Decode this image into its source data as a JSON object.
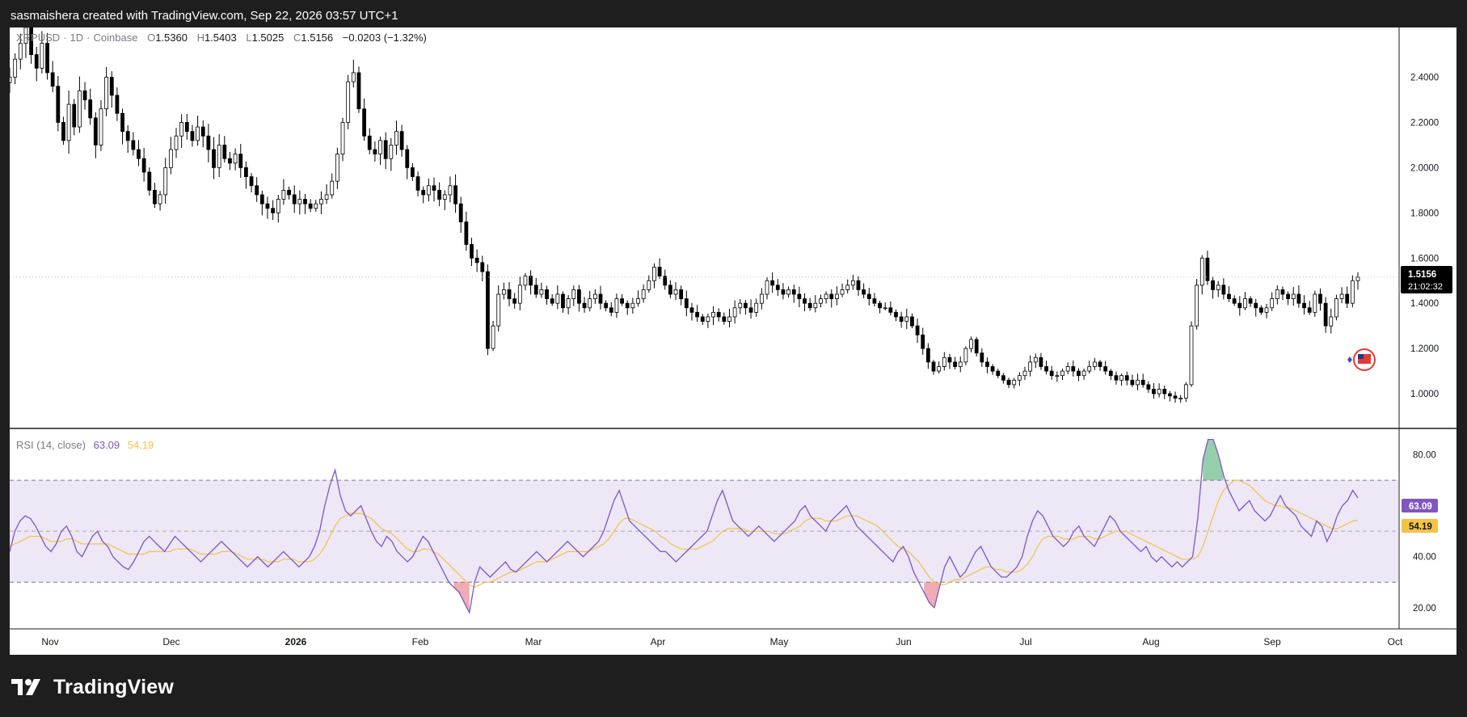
{
  "header": {
    "attribution": "sasmaishera created with TradingView.com, Sep 22, 2026 03:57 UTC+1"
  },
  "legend": {
    "symbol": "XRPUSD",
    "interval": "1D",
    "exchange": "Coinbase",
    "o_label": "O",
    "o_value": "1.5360",
    "h_label": "H",
    "h_value": "1.5403",
    "l_label": "L",
    "l_value": "1.5025",
    "c_label": "C",
    "c_value": "1.5156",
    "change": "−0.0203 (−1.32%)"
  },
  "rsi_legend": {
    "name": "RSI (14, close)",
    "rsi_value": "63.09",
    "ma_value": "54.19"
  },
  "price_tag": {
    "price": "1.5156",
    "countdown": "21:02:32"
  },
  "brand": {
    "name": "TradingView"
  },
  "colors": {
    "candle": "#000000",
    "rsi_line": "#7e57c2",
    "rsi_ma": "#f5c343",
    "rsi_band": "#ede7f6",
    "overbought_fill": "#2e9e5a",
    "oversold_fill": "#e05a6a",
    "frame": "#1e1e1e"
  },
  "chart_data": [
    {
      "type": "candlestick",
      "series_name": "XRPUSD",
      "x_axis_labels": [
        "Nov",
        "Dec",
        "2026",
        "Feb",
        "Mar",
        "Apr",
        "May",
        "Jun",
        "Jul",
        "Aug",
        "Sep",
        "Oct"
      ],
      "y_axis_labels": [
        "2.4000",
        "2.2000",
        "2.0000",
        "1.8000",
        "1.6000",
        "1.4000",
        "1.2000",
        "1.0000"
      ],
      "ylim": [
        0.85,
        2.62
      ],
      "last_price": 1.5156,
      "grid": false,
      "approx_daily_closes": [
        2.4,
        2.48,
        2.55,
        2.62,
        2.5,
        2.44,
        2.55,
        2.42,
        2.36,
        2.2,
        2.12,
        2.28,
        2.18,
        2.34,
        2.3,
        2.22,
        2.1,
        2.26,
        2.4,
        2.32,
        2.24,
        2.16,
        2.12,
        2.08,
        2.04,
        1.98,
        1.9,
        1.84,
        1.88,
        2.0,
        2.08,
        2.14,
        2.2,
        2.16,
        2.12,
        2.18,
        2.14,
        2.08,
        2.0,
        2.1,
        2.04,
        2.02,
        2.06,
        2.0,
        1.96,
        1.92,
        1.88,
        1.84,
        1.82,
        1.8,
        1.86,
        1.9,
        1.88,
        1.84,
        1.86,
        1.84,
        1.82,
        1.84,
        1.86,
        1.88,
        1.94,
        2.06,
        2.2,
        2.38,
        2.42,
        2.26,
        2.14,
        2.08,
        2.06,
        2.12,
        2.04,
        2.1,
        2.16,
        2.08,
        2.0,
        1.96,
        1.9,
        1.88,
        1.92,
        1.9,
        1.86,
        1.88,
        1.92,
        1.84,
        1.76,
        1.66,
        1.6,
        1.58,
        1.54,
        1.2,
        1.3,
        1.44,
        1.46,
        1.42,
        1.4,
        1.48,
        1.52,
        1.48,
        1.44,
        1.46,
        1.42,
        1.4,
        1.44,
        1.38,
        1.42,
        1.46,
        1.4,
        1.38,
        1.42,
        1.44,
        1.4,
        1.38,
        1.36,
        1.42,
        1.4,
        1.38,
        1.4,
        1.42,
        1.46,
        1.5,
        1.56,
        1.52,
        1.48,
        1.44,
        1.46,
        1.42,
        1.38,
        1.36,
        1.34,
        1.32,
        1.34,
        1.36,
        1.34,
        1.32,
        1.34,
        1.38,
        1.4,
        1.38,
        1.36,
        1.4,
        1.44,
        1.5,
        1.48,
        1.46,
        1.44,
        1.46,
        1.44,
        1.42,
        1.4,
        1.38,
        1.4,
        1.42,
        1.44,
        1.42,
        1.44,
        1.46,
        1.48,
        1.5,
        1.46,
        1.44,
        1.42,
        1.4,
        1.38,
        1.38,
        1.36,
        1.34,
        1.32,
        1.34,
        1.3,
        1.26,
        1.2,
        1.14,
        1.1,
        1.12,
        1.16,
        1.14,
        1.12,
        1.14,
        1.2,
        1.24,
        1.18,
        1.14,
        1.12,
        1.1,
        1.08,
        1.06,
        1.04,
        1.06,
        1.08,
        1.1,
        1.14,
        1.16,
        1.12,
        1.1,
        1.08,
        1.08,
        1.1,
        1.12,
        1.1,
        1.08,
        1.1,
        1.12,
        1.14,
        1.12,
        1.1,
        1.08,
        1.06,
        1.08,
        1.06,
        1.04,
        1.06,
        1.04,
        1.02,
        1.0,
        1.02,
        1.0,
        0.99,
        0.98,
        0.98,
        1.04,
        1.3,
        1.48,
        1.6,
        1.5,
        1.46,
        1.48,
        1.44,
        1.42,
        1.4,
        1.38,
        1.42,
        1.4,
        1.38,
        1.36,
        1.38,
        1.42,
        1.46,
        1.44,
        1.42,
        1.44,
        1.4,
        1.38,
        1.36,
        1.44,
        1.4,
        1.3,
        1.34,
        1.42,
        1.44,
        1.4,
        1.5,
        1.5156
      ]
    },
    {
      "type": "line",
      "series": [
        {
          "name": "RSI (14, close)",
          "last": 63.09
        },
        {
          "name": "RSI MA",
          "last": 54.19
        }
      ],
      "y_axis_labels": [
        "80.00",
        "40.00",
        "20.00"
      ],
      "ylim": [
        12,
        90
      ],
      "bands": [
        30,
        50,
        70
      ],
      "approx_rsi": [
        42,
        50,
        54,
        56,
        55,
        52,
        48,
        44,
        42,
        45,
        50,
        52,
        48,
        42,
        40,
        44,
        48,
        50,
        46,
        44,
        40,
        38,
        36,
        35,
        38,
        42,
        46,
        48,
        46,
        44,
        42,
        45,
        48,
        46,
        44,
        42,
        40,
        38,
        40,
        42,
        44,
        46,
        44,
        42,
        40,
        38,
        36,
        38,
        40,
        38,
        36,
        38,
        40,
        42,
        40,
        38,
        36,
        38,
        40,
        44,
        50,
        60,
        68,
        74,
        64,
        58,
        56,
        58,
        60,
        55,
        50,
        46,
        44,
        48,
        46,
        42,
        40,
        38,
        40,
        44,
        48,
        46,
        42,
        38,
        34,
        30,
        28,
        26,
        22,
        18,
        30,
        36,
        34,
        32,
        34,
        36,
        38,
        35,
        34,
        36,
        38,
        40,
        42,
        40,
        38,
        40,
        42,
        44,
        46,
        44,
        42,
        40,
        42,
        44,
        46,
        50,
        56,
        62,
        66,
        60,
        54,
        52,
        50,
        48,
        46,
        44,
        42,
        42,
        40,
        38,
        40,
        42,
        44,
        46,
        48,
        50,
        56,
        62,
        66,
        60,
        54,
        52,
        50,
        48,
        50,
        52,
        50,
        48,
        46,
        48,
        50,
        52,
        54,
        58,
        60,
        56,
        54,
        52,
        50,
        54,
        56,
        58,
        60,
        56,
        52,
        50,
        48,
        46,
        44,
        42,
        40,
        38,
        42,
        44,
        40,
        34,
        30,
        26,
        22,
        20,
        28,
        36,
        40,
        36,
        32,
        34,
        38,
        42,
        44,
        40,
        36,
        34,
        32,
        32,
        34,
        36,
        40,
        48,
        54,
        58,
        56,
        52,
        48,
        46,
        44,
        46,
        50,
        52,
        48,
        46,
        44,
        48,
        52,
        56,
        54,
        50,
        48,
        46,
        44,
        42,
        44,
        40,
        38,
        40,
        38,
        36,
        38,
        36,
        38,
        40,
        55,
        78,
        86,
        86,
        80,
        72,
        66,
        62,
        58,
        60,
        62,
        58,
        56,
        54,
        56,
        60,
        64,
        60,
        58,
        56,
        52,
        50,
        48,
        54,
        52,
        46,
        50,
        56,
        60,
        62,
        66,
        63.09
      ],
      "approx_rsi_ma": [
        44,
        45,
        46,
        47,
        48,
        48,
        48,
        47,
        46,
        46,
        46,
        47,
        47,
        46,
        45,
        45,
        45,
        45,
        45,
        45,
        44,
        43,
        42,
        41,
        41,
        41,
        41,
        42,
        42,
        42,
        42,
        42,
        43,
        43,
        43,
        43,
        42,
        41,
        41,
        41,
        41,
        42,
        42,
        42,
        41,
        40,
        39,
        39,
        39,
        39,
        38,
        38,
        38,
        39,
        39,
        39,
        38,
        38,
        38,
        39,
        41,
        44,
        48,
        52,
        55,
        56,
        57,
        57,
        57,
        56,
        55,
        53,
        51,
        50,
        49,
        47,
        45,
        43,
        42,
        42,
        43,
        43,
        42,
        41,
        39,
        37,
        35,
        33,
        31,
        29,
        28,
        29,
        30,
        30,
        31,
        32,
        33,
        34,
        34,
        35,
        36,
        37,
        38,
        38,
        38,
        39,
        40,
        41,
        42,
        42,
        42,
        42,
        42,
        43,
        44,
        45,
        47,
        50,
        53,
        55,
        55,
        54,
        53,
        52,
        51,
        50,
        48,
        47,
        45,
        44,
        43,
        43,
        43,
        43,
        44,
        45,
        46,
        48,
        50,
        51,
        51,
        51,
        51,
        50,
        50,
        50,
        50,
        50,
        49,
        49,
        49,
        50,
        51,
        52,
        54,
        55,
        55,
        55,
        54,
        54,
        54,
        55,
        56,
        56,
        56,
        55,
        54,
        53,
        52,
        50,
        48,
        46,
        44,
        43,
        42,
        40,
        38,
        35,
        32,
        30,
        29,
        29,
        30,
        31,
        31,
        32,
        33,
        34,
        35,
        36,
        36,
        35,
        35,
        34,
        34,
        34,
        35,
        37,
        40,
        44,
        47,
        48,
        48,
        48,
        47,
        47,
        47,
        48,
        48,
        48,
        47,
        47,
        48,
        49,
        50,
        50,
        50,
        49,
        48,
        47,
        46,
        45,
        44,
        43,
        42,
        41,
        40,
        39,
        39,
        39,
        40,
        44,
        50,
        56,
        62,
        66,
        68,
        70,
        70,
        69,
        68,
        66,
        64,
        62,
        61,
        60,
        60,
        59,
        59,
        58,
        57,
        56,
        55,
        54,
        53,
        52,
        51,
        51,
        52,
        53,
        54,
        54.19
      ]
    }
  ]
}
